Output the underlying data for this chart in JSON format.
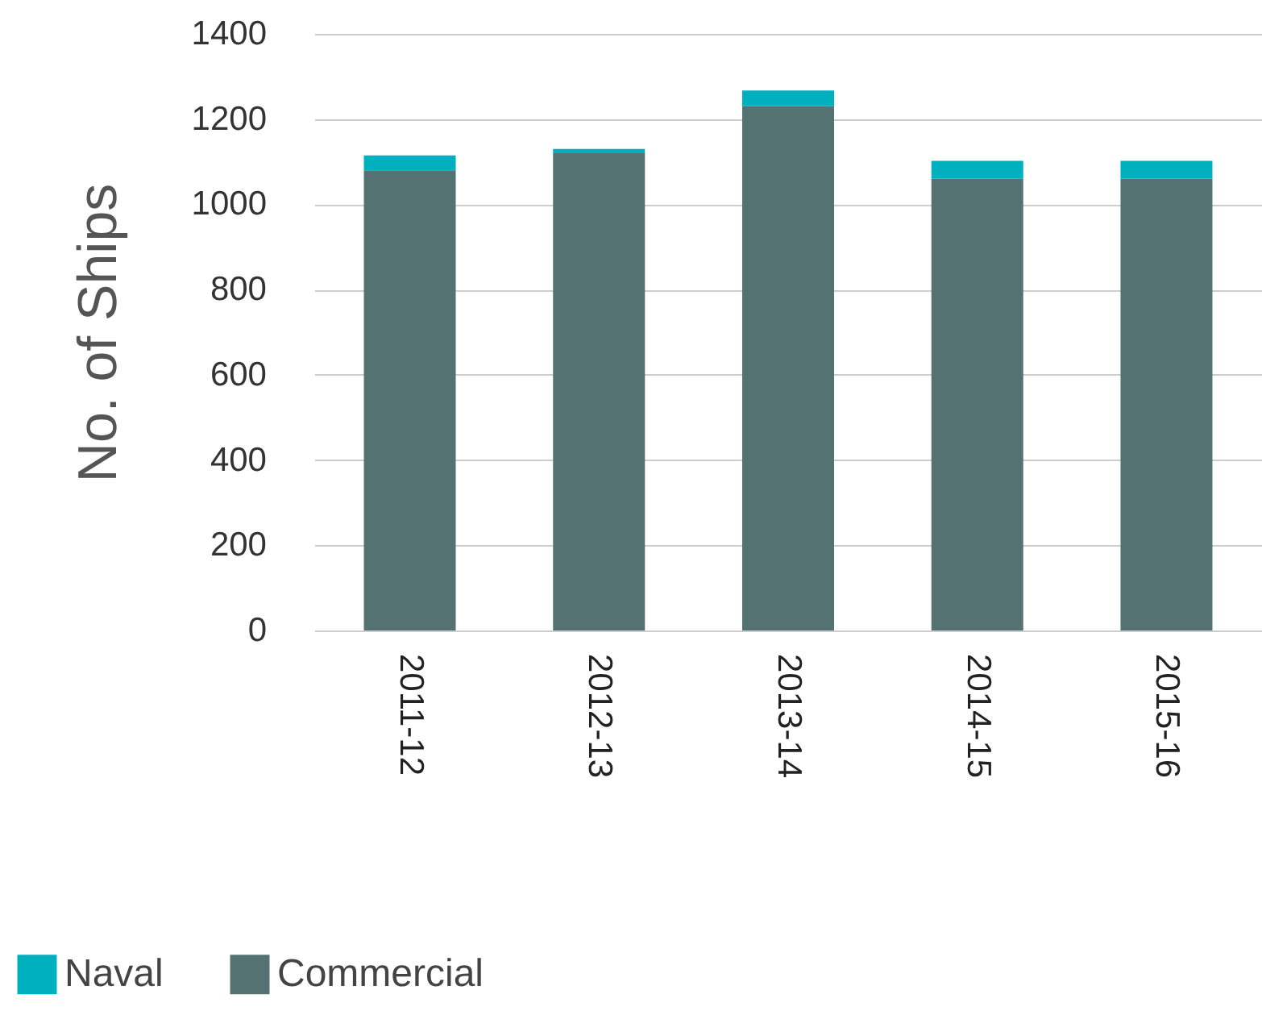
{
  "chart_data": {
    "type": "bar",
    "ylabel": "No. of Ships",
    "categories": [
      "2011-12",
      "2012-13",
      "2013-14",
      "2014-15",
      "2015-16"
    ],
    "stacked": true,
    "series": [
      {
        "name": "Commercial",
        "color": "#537271",
        "values": [
          1080,
          1120,
          1230,
          1060,
          1060
        ]
      },
      {
        "name": "Naval",
        "color": "#00b0bf",
        "values": [
          35,
          10,
          37,
          42,
          42
        ]
      }
    ],
    "ylim": [
      0,
      1400
    ],
    "yticks": [
      0,
      200,
      400,
      600,
      800,
      1000,
      1200,
      1400
    ],
    "grid": "y",
    "legend": "bottom left"
  }
}
